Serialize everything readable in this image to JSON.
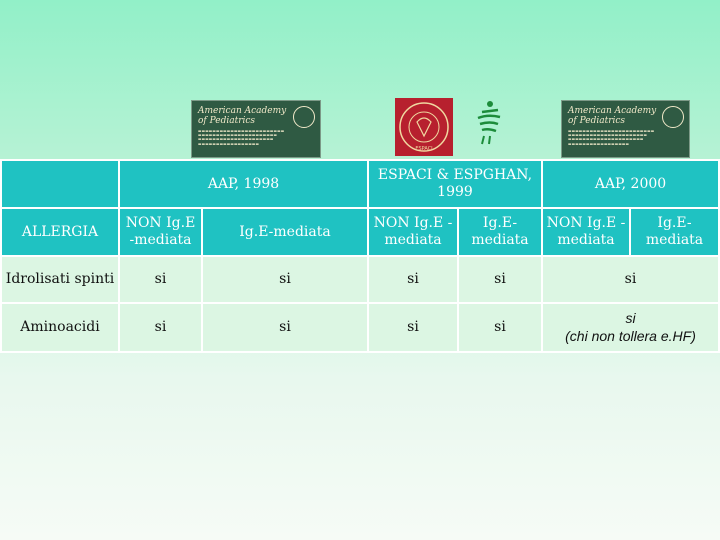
{
  "colors": {
    "header_bg": "#1fc2c2",
    "cell_bg": "#dcf6e3",
    "grid_line": "#ffffff"
  },
  "logos": {
    "aap_left": {
      "icon": "aap-logo",
      "name_line1": "American Academy",
      "name_line2": "of Pediatrics"
    },
    "espaci": {
      "icon": "espaci-seal-logo",
      "text": "ESPACI"
    },
    "espghan": {
      "icon": "espghan-figure-logo"
    },
    "aap_right": {
      "icon": "aap-logo",
      "name_line1": "American Academy",
      "name_line2": "of Pediatrics"
    }
  },
  "table": {
    "headers": {
      "aap1998": "AAP, 1998",
      "espaci": "ESPACI & ESPGHAN, 1999",
      "aap2000": "AAP, 2000"
    },
    "subheaders": {
      "row_label": "ALLERGIA",
      "non_ige_1": "NON Ig.E -mediata",
      "ige_1": "Ig.E-mediata",
      "non_ige_2": "NON Ig.E -mediata",
      "ige_2": "Ig.E- mediata",
      "non_ige_3": "NON Ig.E -mediata",
      "ige_3": "Ig.E- mediata"
    },
    "rows": [
      {
        "label": "Idrolisati spinti",
        "c1": "si",
        "c2": "si",
        "c3": "si",
        "c4": "si",
        "merged": "si"
      },
      {
        "label": "Aminoacidi",
        "c1": "si",
        "c2": "si",
        "c3": "si",
        "c4": "si",
        "merged": "si",
        "merged_note": "(chi non tollera e.HF)"
      }
    ]
  }
}
